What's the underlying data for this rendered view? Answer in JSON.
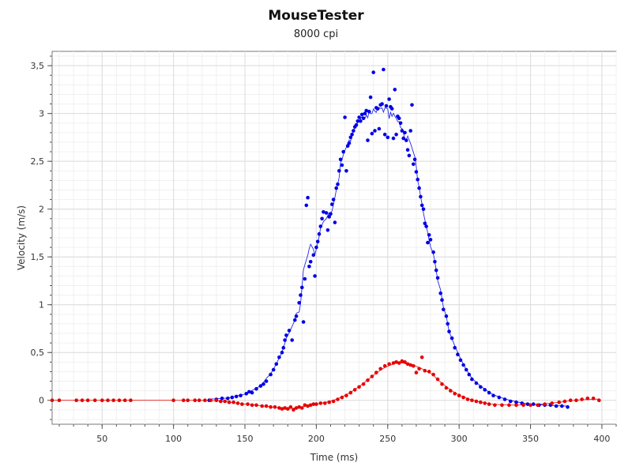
{
  "chart_data": {
    "type": "scatter",
    "title": "MouseTester",
    "subtitle": "8000 cpi",
    "xlabel": "Time (ms)",
    "ylabel": "Velocity (m/s)",
    "xlim": [
      15,
      410
    ],
    "ylim": [
      -0.25,
      3.65
    ],
    "x_ticks": [
      50,
      100,
      150,
      200,
      250,
      300,
      350,
      400
    ],
    "y_ticks": [
      0,
      0.5,
      1,
      1.5,
      2,
      2.5,
      3,
      3.5
    ],
    "x_tick_labels": [
      "50",
      "100",
      "150",
      "200",
      "250",
      "300",
      "350",
      "400"
    ],
    "y_tick_labels": [
      "0",
      "0,5",
      "1",
      "1,5",
      "2",
      "2,5",
      "3",
      "3,5"
    ],
    "grid": true,
    "colors": {
      "blue": "#0000e6",
      "red": "#e60000"
    },
    "series": [
      {
        "color": "blue",
        "markers": "dots",
        "smoothed_line": true,
        "points": [
          [
            125,
            0.0
          ],
          [
            130,
            0.01
          ],
          [
            134,
            0.02
          ],
          [
            138,
            0.02
          ],
          [
            141,
            0.03
          ],
          [
            144,
            0.04
          ],
          [
            147,
            0.05
          ],
          [
            151,
            0.07
          ],
          [
            153,
            0.09
          ],
          [
            155,
            0.08
          ],
          [
            158,
            0.12
          ],
          [
            161,
            0.15
          ],
          [
            163,
            0.17
          ],
          [
            165,
            0.2
          ],
          [
            168,
            0.27
          ],
          [
            170,
            0.32
          ],
          [
            172,
            0.38
          ],
          [
            174,
            0.45
          ],
          [
            176,
            0.5
          ],
          [
            177,
            0.55
          ],
          [
            178,
            0.63
          ],
          [
            179,
            0.68
          ],
          [
            181,
            0.73
          ],
          [
            183,
            0.63
          ],
          [
            185,
            0.84
          ],
          [
            186,
            0.88
          ],
          [
            188,
            1.02
          ],
          [
            189,
            1.1
          ],
          [
            190,
            1.18
          ],
          [
            191,
            0.82
          ],
          [
            192,
            1.27
          ],
          [
            193,
            2.04
          ],
          [
            194,
            2.12
          ],
          [
            195,
            1.4
          ],
          [
            196,
            1.45
          ],
          [
            198,
            1.52
          ],
          [
            199,
            1.3
          ],
          [
            200,
            1.6
          ],
          [
            201,
            1.66
          ],
          [
            202,
            1.74
          ],
          [
            203,
            1.82
          ],
          [
            204,
            1.9
          ],
          [
            205,
            1.97
          ],
          [
            207,
            1.96
          ],
          [
            208,
            1.78
          ],
          [
            209,
            1.92
          ],
          [
            210,
            1.95
          ],
          [
            211,
            2.05
          ],
          [
            212,
            2.1
          ],
          [
            213,
            1.86
          ],
          [
            214,
            2.22
          ],
          [
            215,
            2.26
          ],
          [
            216,
            2.4
          ],
          [
            217,
            2.52
          ],
          [
            218,
            2.46
          ],
          [
            219,
            2.6
          ],
          [
            220,
            2.96
          ],
          [
            221,
            2.4
          ],
          [
            222,
            2.66
          ],
          [
            223,
            2.69
          ],
          [
            224,
            2.75
          ],
          [
            225,
            2.78
          ],
          [
            226,
            2.82
          ],
          [
            227,
            2.86
          ],
          [
            228,
            2.88
          ],
          [
            229,
            2.92
          ],
          [
            230,
            2.96
          ],
          [
            231,
            2.92
          ],
          [
            232,
            2.99
          ],
          [
            233,
            2.95
          ],
          [
            234,
            3.0
          ],
          [
            235,
            3.03
          ],
          [
            236,
            2.72
          ],
          [
            237,
            3.02
          ],
          [
            238,
            3.17
          ],
          [
            239,
            2.79
          ],
          [
            240,
            3.43
          ],
          [
            241,
            2.82
          ],
          [
            242,
            3.06
          ],
          [
            243,
            3.05
          ],
          [
            244,
            2.84
          ],
          [
            245,
            3.09
          ],
          [
            246,
            3.1
          ],
          [
            247,
            3.46
          ],
          [
            248,
            2.78
          ],
          [
            249,
            3.08
          ],
          [
            250,
            2.75
          ],
          [
            251,
            3.15
          ],
          [
            252,
            3.07
          ],
          [
            253,
            3.05
          ],
          [
            254,
            2.74
          ],
          [
            255,
            3.25
          ],
          [
            256,
            2.78
          ],
          [
            257,
            2.97
          ],
          [
            258,
            2.95
          ],
          [
            259,
            2.9
          ],
          [
            260,
            2.82
          ],
          [
            261,
            2.74
          ],
          [
            262,
            2.8
          ],
          [
            263,
            2.72
          ],
          [
            264,
            2.62
          ],
          [
            265,
            2.56
          ],
          [
            266,
            2.82
          ],
          [
            267,
            3.09
          ],
          [
            268,
            2.47
          ],
          [
            269,
            2.52
          ],
          [
            270,
            2.39
          ],
          [
            271,
            2.31
          ],
          [
            272,
            2.22
          ],
          [
            273,
            2.13
          ],
          [
            274,
            2.04
          ],
          [
            275,
            2.0
          ],
          [
            276,
            1.85
          ],
          [
            277,
            1.82
          ],
          [
            278,
            1.65
          ],
          [
            279,
            1.73
          ],
          [
            280,
            1.68
          ],
          [
            282,
            1.55
          ],
          [
            283,
            1.45
          ],
          [
            284,
            1.36
          ],
          [
            285,
            1.28
          ],
          [
            287,
            1.12
          ],
          [
            288,
            1.05
          ],
          [
            289,
            0.95
          ],
          [
            291,
            0.88
          ],
          [
            292,
            0.8
          ],
          [
            293,
            0.72
          ],
          [
            295,
            0.65
          ],
          [
            297,
            0.55
          ],
          [
            299,
            0.48
          ],
          [
            301,
            0.42
          ],
          [
            303,
            0.37
          ],
          [
            305,
            0.32
          ],
          [
            307,
            0.27
          ],
          [
            309,
            0.22
          ],
          [
            312,
            0.18
          ],
          [
            315,
            0.14
          ],
          [
            318,
            0.11
          ],
          [
            321,
            0.08
          ],
          [
            324,
            0.05
          ],
          [
            328,
            0.03
          ],
          [
            332,
            0.01
          ],
          [
            336,
            -0.01
          ],
          [
            340,
            -0.02
          ],
          [
            344,
            -0.03
          ],
          [
            348,
            -0.04
          ],
          [
            352,
            -0.04
          ],
          [
            356,
            -0.05
          ],
          [
            360,
            -0.05
          ],
          [
            364,
            -0.05
          ],
          [
            368,
            -0.06
          ],
          [
            372,
            -0.06
          ],
          [
            376,
            -0.07
          ]
        ]
      },
      {
        "color": "red",
        "markers": "dots",
        "smoothed_line": true,
        "points": [
          [
            15,
            0
          ],
          [
            20,
            0
          ],
          [
            32,
            0
          ],
          [
            36,
            0
          ],
          [
            40,
            0
          ],
          [
            45,
            0
          ],
          [
            50,
            0
          ],
          [
            54,
            0
          ],
          [
            58,
            0
          ],
          [
            62,
            0
          ],
          [
            66,
            0
          ],
          [
            70,
            0
          ],
          [
            100,
            0
          ],
          [
            107,
            0
          ],
          [
            110,
            0
          ],
          [
            115,
            0
          ],
          [
            118,
            0
          ],
          [
            122,
            0
          ],
          [
            126,
            0
          ],
          [
            130,
            0
          ],
          [
            133,
            -0.01
          ],
          [
            136,
            -0.01
          ],
          [
            139,
            -0.02
          ],
          [
            142,
            -0.02
          ],
          [
            145,
            -0.03
          ],
          [
            148,
            -0.04
          ],
          [
            152,
            -0.04
          ],
          [
            155,
            -0.05
          ],
          [
            158,
            -0.05
          ],
          [
            162,
            -0.06
          ],
          [
            165,
            -0.06
          ],
          [
            168,
            -0.07
          ],
          [
            171,
            -0.07
          ],
          [
            174,
            -0.08
          ],
          [
            176,
            -0.09
          ],
          [
            178,
            -0.08
          ],
          [
            180,
            -0.09
          ],
          [
            182,
            -0.07
          ],
          [
            184,
            -0.1
          ],
          [
            186,
            -0.08
          ],
          [
            188,
            -0.07
          ],
          [
            190,
            -0.08
          ],
          [
            192,
            -0.05
          ],
          [
            194,
            -0.06
          ],
          [
            196,
            -0.05
          ],
          [
            198,
            -0.04
          ],
          [
            200,
            -0.04
          ],
          [
            203,
            -0.03
          ],
          [
            206,
            -0.03
          ],
          [
            209,
            -0.02
          ],
          [
            212,
            -0.01
          ],
          [
            215,
            0.01
          ],
          [
            218,
            0.03
          ],
          [
            221,
            0.05
          ],
          [
            224,
            0.08
          ],
          [
            227,
            0.11
          ],
          [
            230,
            0.14
          ],
          [
            233,
            0.17
          ],
          [
            236,
            0.21
          ],
          [
            239,
            0.25
          ],
          [
            242,
            0.29
          ],
          [
            245,
            0.33
          ],
          [
            248,
            0.36
          ],
          [
            251,
            0.38
          ],
          [
            254,
            0.39
          ],
          [
            256,
            0.4
          ],
          [
            258,
            0.39
          ],
          [
            260,
            0.41
          ],
          [
            262,
            0.4
          ],
          [
            264,
            0.38
          ],
          [
            266,
            0.37
          ],
          [
            268,
            0.36
          ],
          [
            270,
            0.29
          ],
          [
            272,
            0.33
          ],
          [
            274,
            0.45
          ],
          [
            276,
            0.31
          ],
          [
            279,
            0.3
          ],
          [
            282,
            0.27
          ],
          [
            285,
            0.22
          ],
          [
            288,
            0.17
          ],
          [
            291,
            0.13
          ],
          [
            294,
            0.1
          ],
          [
            297,
            0.07
          ],
          [
            300,
            0.05
          ],
          [
            303,
            0.03
          ],
          [
            306,
            0.01
          ],
          [
            309,
            0.0
          ],
          [
            312,
            -0.01
          ],
          [
            315,
            -0.02
          ],
          [
            318,
            -0.03
          ],
          [
            321,
            -0.04
          ],
          [
            325,
            -0.05
          ],
          [
            330,
            -0.05
          ],
          [
            335,
            -0.05
          ],
          [
            340,
            -0.05
          ],
          [
            345,
            -0.05
          ],
          [
            350,
            -0.05
          ],
          [
            355,
            -0.05
          ],
          [
            360,
            -0.04
          ],
          [
            365,
            -0.03
          ],
          [
            370,
            -0.02
          ],
          [
            374,
            -0.01
          ],
          [
            378,
            0.0
          ],
          [
            382,
            0.0
          ],
          [
            386,
            0.01
          ],
          [
            390,
            0.02
          ],
          [
            394,
            0.02
          ],
          [
            398,
            0.0
          ]
        ]
      }
    ]
  }
}
